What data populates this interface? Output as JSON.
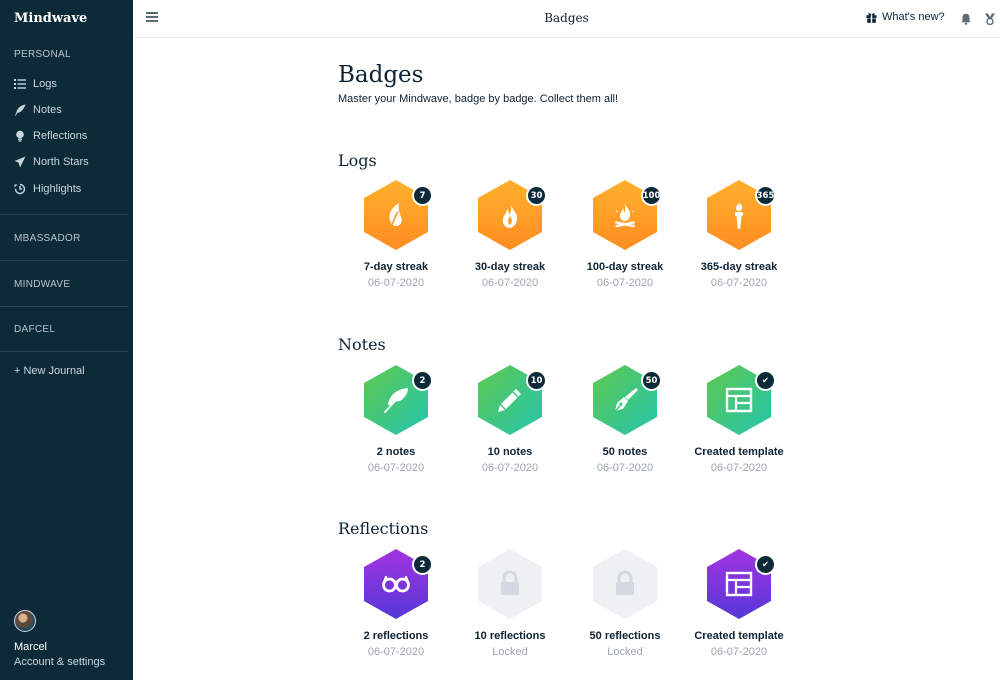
{
  "app": {
    "brand": "Mindwave"
  },
  "sidebar": {
    "personal_label": "PERSONAL",
    "items": [
      {
        "label": "Logs",
        "icon": "list-icon"
      },
      {
        "label": "Notes",
        "icon": "quill-icon"
      },
      {
        "label": "Reflections",
        "icon": "lightbulb-icon"
      },
      {
        "label": "North Stars",
        "icon": "paper-plane-icon"
      },
      {
        "label": "Highlights",
        "icon": "history-icon"
      }
    ],
    "journals": [
      "MBASSADOR",
      "MINDWAVE",
      "DAFCEL"
    ],
    "new_journal": "+ New Journal",
    "user": {
      "name": "Marcel",
      "settings": "Account & settings"
    }
  },
  "topbar": {
    "title": "Badges",
    "whats_new": "What's new?"
  },
  "main": {
    "title": "Badges",
    "subtitle": "Master your Mindwave, badge by badge. Collect them all!",
    "groups": [
      {
        "title": "Logs",
        "badges": [
          {
            "name": "7-day streak",
            "date": "06-07-2020",
            "count": "7",
            "icon": "leaf-icon",
            "color": "orange"
          },
          {
            "name": "30-day streak",
            "date": "06-07-2020",
            "count": "30",
            "icon": "flame-icon",
            "color": "orange"
          },
          {
            "name": "100-day streak",
            "date": "06-07-2020",
            "count": "100",
            "icon": "campfire-icon",
            "color": "orange"
          },
          {
            "name": "365-day streak",
            "date": "06-07-2020",
            "count": "365",
            "icon": "torch-icon",
            "color": "orange"
          }
        ]
      },
      {
        "title": "Notes",
        "badges": [
          {
            "name": "2 notes",
            "date": "06-07-2020",
            "count": "2",
            "icon": "feather-icon",
            "color": "green"
          },
          {
            "name": "10 notes",
            "date": "06-07-2020",
            "count": "10",
            "icon": "pencil-icon",
            "color": "green"
          },
          {
            "name": "50 notes",
            "date": "06-07-2020",
            "count": "50",
            "icon": "pen-nib-icon",
            "color": "green"
          },
          {
            "name": "Created template",
            "date": "06-07-2020",
            "count": "✔",
            "icon": "template-icon",
            "color": "green"
          }
        ]
      },
      {
        "title": "Reflections",
        "badges": [
          {
            "name": "2 reflections",
            "date": "06-07-2020",
            "count": "2",
            "icon": "glasses-icon",
            "color": "purple"
          },
          {
            "name": "10 reflections",
            "date": "Locked",
            "count": "",
            "icon": "lock-icon",
            "color": "locked"
          },
          {
            "name": "50 reflections",
            "date": "Locked",
            "count": "",
            "icon": "lock-icon",
            "color": "locked"
          },
          {
            "name": "Created template",
            "date": "06-07-2020",
            "count": "✔",
            "icon": "template-icon",
            "color": "purple"
          }
        ]
      }
    ]
  },
  "colors": {
    "sidebar_bg": "#0d2a38",
    "orange_top": "#ffb22e",
    "orange_bottom": "#ff8f1f",
    "green_top": "#58c957",
    "green_bottom": "#2fc6a3",
    "purple_top": "#a136e0",
    "purple_bottom": "#5a34d6",
    "locked": "#e8ecef"
  }
}
